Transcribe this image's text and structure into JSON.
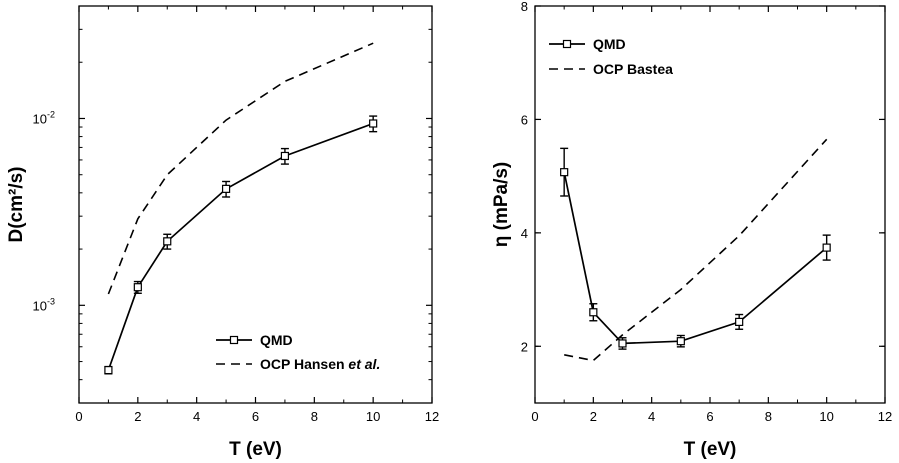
{
  "chart_data": [
    {
      "type": "line",
      "xlabel": "T (eV)",
      "ylabel": "D(cm²/s)",
      "xlim": [
        0,
        12
      ],
      "ylim": [
        0.0003,
        0.04
      ],
      "yscale": "log",
      "xticks": [
        "0",
        "2",
        "4",
        "6",
        "8",
        "10",
        "12"
      ],
      "yticks": [
        {
          "value": 0.001,
          "base": "10",
          "exp": "-3"
        },
        {
          "value": 0.01,
          "base": "10",
          "exp": "-2"
        }
      ],
      "legend_position": "bottom-right",
      "series": [
        {
          "name": "QMD",
          "style": "solid-square-markers",
          "x": [
            1,
            2,
            3,
            5,
            7,
            10
          ],
          "y": [
            0.00045,
            0.00125,
            0.0022,
            0.0042,
            0.0063,
            0.0094
          ],
          "err": [
            2e-05,
            9e-05,
            0.0002,
            0.0004,
            0.0006,
            0.0009
          ]
        },
        {
          "name": "OCP Hansen",
          "name_suffix": "et al.",
          "style": "dashed",
          "x": [
            1,
            2,
            3,
            5,
            7,
            10
          ],
          "y": [
            0.00115,
            0.0029,
            0.005,
            0.0098,
            0.0158,
            0.0253
          ]
        }
      ]
    },
    {
      "type": "line",
      "xlabel": "T (eV)",
      "ylabel": "η (mPa/s)",
      "xlim": [
        0,
        12
      ],
      "ylim": [
        1,
        8
      ],
      "yscale": "linear",
      "xticks": [
        "0",
        "2",
        "4",
        "6",
        "8",
        "10",
        "12"
      ],
      "yticks": [
        "2",
        "4",
        "6",
        "8"
      ],
      "legend_position": "top-left",
      "series": [
        {
          "name": "QMD",
          "style": "solid-square-markers",
          "x": [
            1,
            2,
            3,
            5,
            7,
            10
          ],
          "y": [
            5.07,
            2.6,
            2.05,
            2.09,
            2.43,
            3.74
          ],
          "err": [
            0.42,
            0.15,
            0.1,
            0.1,
            0.13,
            0.22
          ]
        },
        {
          "name": "OCP Bastea",
          "style": "dashed",
          "x": [
            1,
            2,
            3,
            5,
            7,
            10
          ],
          "y": [
            1.85,
            1.75,
            2.2,
            3.0,
            3.95,
            5.65
          ]
        }
      ]
    }
  ]
}
